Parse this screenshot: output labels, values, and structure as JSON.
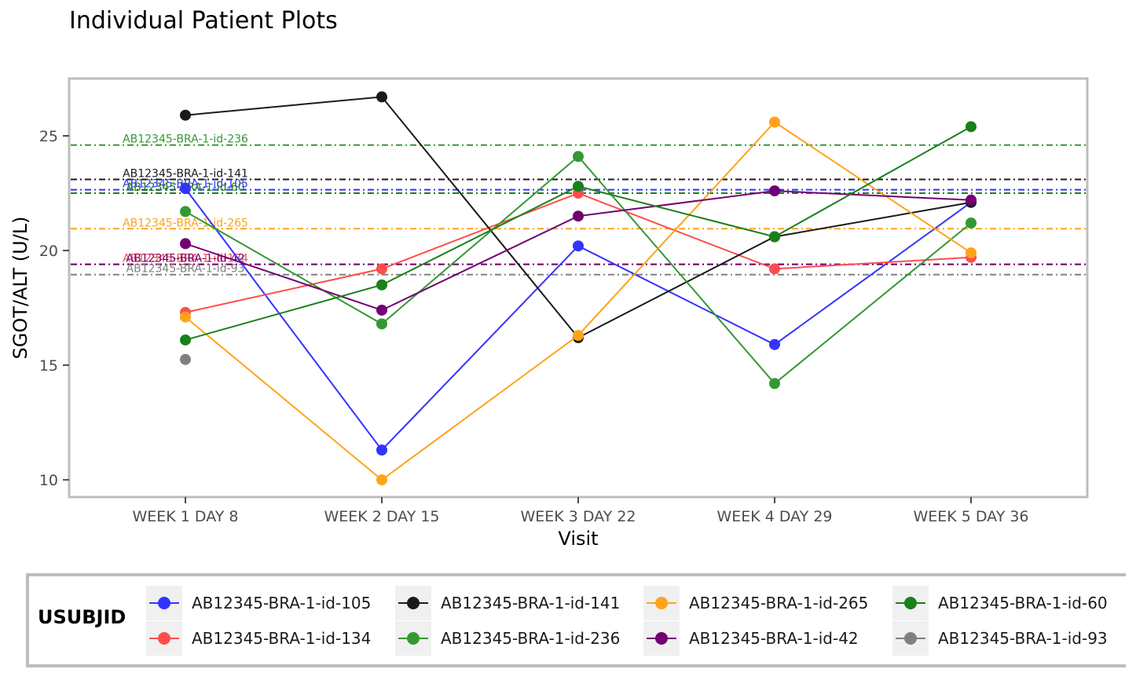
{
  "title": "Individual Patient Plots",
  "chart_data": {
    "type": "line",
    "title": "Individual Patient Plots",
    "xlabel": "Visit",
    "ylabel": "SGOT/ALT (U/L)",
    "categories": [
      "WEEK 1 DAY 8",
      "WEEK 2 DAY 15",
      "WEEK 3 DAY 22",
      "WEEK 4 DAY 29",
      "WEEK 5 DAY 36"
    ],
    "ylim": [
      9.25,
      27.5
    ],
    "yticks": [
      10,
      15,
      20,
      25
    ],
    "grid": false,
    "legend_position": "bottom",
    "legend_title": "USUBJID",
    "series": [
      {
        "name": "AB12345-BRA-1-id-105",
        "color": "#3333ff",
        "values": [
          22.7,
          11.3,
          20.2,
          15.9,
          22.1
        ],
        "baseline": 22.65
      },
      {
        "name": "AB12345-BRA-1-id-134",
        "color": "#ff4d4d",
        "values": [
          17.3,
          19.2,
          22.5,
          19.2,
          19.7
        ],
        "baseline": 19.4
      },
      {
        "name": "AB12345-BRA-1-id-141",
        "color": "#1a1a1a",
        "values": [
          25.9,
          26.7,
          16.2,
          20.6,
          22.1
        ],
        "baseline": 23.1
      },
      {
        "name": "AB12345-BRA-1-id-236",
        "color": "#339933",
        "values": [
          21.7,
          16.8,
          24.1,
          14.2,
          21.2
        ],
        "baseline": 24.6
      },
      {
        "name": "AB12345-BRA-1-id-265",
        "color": "#ffa31a",
        "values": [
          17.1,
          10.0,
          16.3,
          25.6,
          19.9
        ],
        "baseline": 20.95
      },
      {
        "name": "AB12345-BRA-1-id-42",
        "color": "#730073",
        "values": [
          20.3,
          17.4,
          21.5,
          22.6,
          22.2
        ],
        "baseline": 19.4
      },
      {
        "name": "AB12345-BRA-1-id-60",
        "color": "#1a801a",
        "values": [
          16.1,
          18.5,
          22.8,
          20.6,
          25.4
        ],
        "baseline": 22.5
      },
      {
        "name": "AB12345-BRA-1-id-93",
        "color": "#808080",
        "values": [
          15.25,
          null,
          null,
          null,
          null
        ],
        "baseline": 18.95
      }
    ],
    "annotations": [
      {
        "text": "AB12345-BRA-1-id-236",
        "series": "AB12345-BRA-1-id-236"
      },
      {
        "text": "AB12345-BRA-1-id-141",
        "series": "AB12345-BRA-1-id-141"
      },
      {
        "text": "AB12345-BRA-1-id-105",
        "series": "AB12345-BRA-1-id-105"
      },
      {
        "text": "AB12345-BRA-1-id-60",
        "series": "AB12345-BRA-1-id-60"
      },
      {
        "text": "AB12345-BRA-1-id-265",
        "series": "AB12345-BRA-1-id-265"
      },
      {
        "text": "AB12345-BRA-1-id-134",
        "series": "AB12345-BRA-1-id-134"
      },
      {
        "text": "AB12345-BRA-1-id-42",
        "series": "AB12345-BRA-1-id-42"
      },
      {
        "text": "AB12345-BRA-1-id-93",
        "series": "AB12345-BRA-1-id-93"
      }
    ]
  },
  "legend": {
    "title": "USUBJID",
    "items": [
      {
        "label": "AB12345-BRA-1-id-105",
        "color": "#3333ff"
      },
      {
        "label": "AB12345-BRA-1-id-141",
        "color": "#1a1a1a"
      },
      {
        "label": "AB12345-BRA-1-id-265",
        "color": "#ffa31a"
      },
      {
        "label": "AB12345-BRA-1-id-60",
        "color": "#1a801a"
      },
      {
        "label": "AB12345-BRA-1-id-134",
        "color": "#ff4d4d"
      },
      {
        "label": "AB12345-BRA-1-id-236",
        "color": "#339933"
      },
      {
        "label": "AB12345-BRA-1-id-42",
        "color": "#730073"
      },
      {
        "label": "AB12345-BRA-1-id-93",
        "color": "#808080"
      }
    ]
  }
}
